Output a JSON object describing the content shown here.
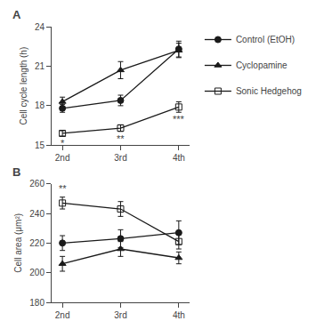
{
  "chart_data": [
    {
      "type": "line",
      "title": "A",
      "ylabel": "Cell cycle length (h)",
      "categories": [
        "2nd",
        "3rd",
        "4th"
      ],
      "ylim": [
        15,
        24
      ],
      "yticks": [
        15,
        18,
        21,
        24
      ],
      "grid": false,
      "legend": "right",
      "series": [
        {
          "name": "Control (EtOH)",
          "color": "#1a1a1a",
          "marker": "circle",
          "values": [
            17.8,
            18.4,
            22.3
          ],
          "yerr": [
            0.3,
            0.4,
            0.6
          ]
        },
        {
          "name": "Cyclopamine",
          "color": "#1a1a1a",
          "marker": "triangle-up",
          "values": [
            18.3,
            20.7,
            22.2
          ],
          "yerr": [
            0.35,
            0.65,
            0.55
          ]
        },
        {
          "name": "Sonic Hedgehog",
          "color": "#1a1a1a",
          "marker": "square-open",
          "values": [
            15.9,
            16.3,
            17.9
          ],
          "yerr": [
            0.2,
            0.25,
            0.4
          ]
        }
      ],
      "annotations": [
        {
          "x": 0,
          "y": 15.7,
          "text": "*"
        },
        {
          "x": 1,
          "y": 16.05,
          "text": "**"
        },
        {
          "x": 2,
          "y": 17.5,
          "text": "***"
        }
      ]
    },
    {
      "type": "line",
      "title": "B",
      "ylabel": "Cell area (μm²)",
      "categories": [
        "2nd",
        "3rd",
        "4th"
      ],
      "ylim": [
        180,
        260
      ],
      "yticks": [
        180,
        200,
        220,
        240,
        260
      ],
      "grid": false,
      "series": [
        {
          "name": "Control (EtOH)",
          "color": "#1a1a1a",
          "marker": "circle",
          "values": [
            220,
            223,
            227
          ],
          "yerr": [
            5,
            6,
            8
          ]
        },
        {
          "name": "Cyclopamine",
          "color": "#1a1a1a",
          "marker": "triangle-up",
          "values": [
            206,
            216,
            210
          ],
          "yerr": [
            5,
            5,
            4
          ]
        },
        {
          "name": "Sonic Hedgehog",
          "color": "#1a1a1a",
          "marker": "square-open",
          "values": [
            247,
            243,
            221
          ],
          "yerr": [
            4,
            5,
            5
          ]
        }
      ],
      "annotations": [
        {
          "x": 0,
          "y": 252,
          "text": "**"
        }
      ]
    }
  ]
}
